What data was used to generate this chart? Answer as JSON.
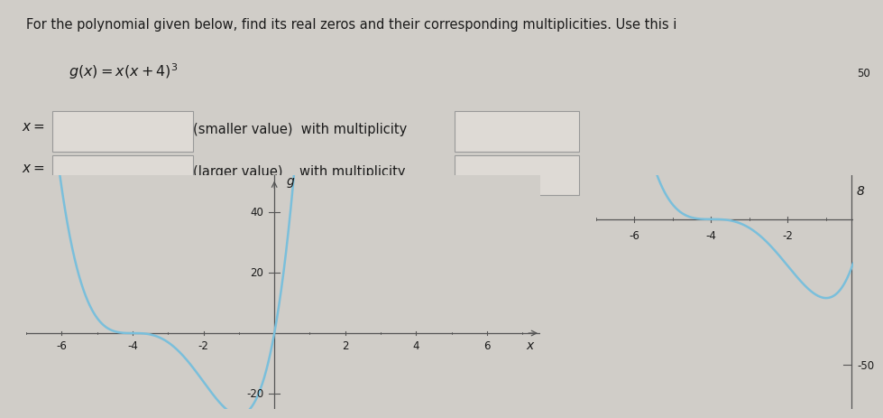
{
  "title_text": "For the polynomial given below, find its real zeros and their corresponding multiplicities. Use this i",
  "bg_color": "#d0cdc8",
  "curve_color": "#7abfdb",
  "input_box_color": "#dedad5",
  "input_box_edge": "#999999",
  "text_color": "#1a1a1a",
  "graph1": {
    "xlim": [
      -7,
      7.5
    ],
    "ylim": [
      -25,
      52
    ],
    "xticks": [
      -6,
      -4,
      -2,
      2,
      4,
      6
    ],
    "yticks": [
      -20,
      20,
      40
    ]
  },
  "graph2": {
    "xlim": [
      -7,
      -0.3
    ],
    "ylim": [
      -65,
      15
    ],
    "xticks": [
      -6,
      -4,
      -2
    ],
    "yticks": [
      50,
      -50
    ]
  }
}
